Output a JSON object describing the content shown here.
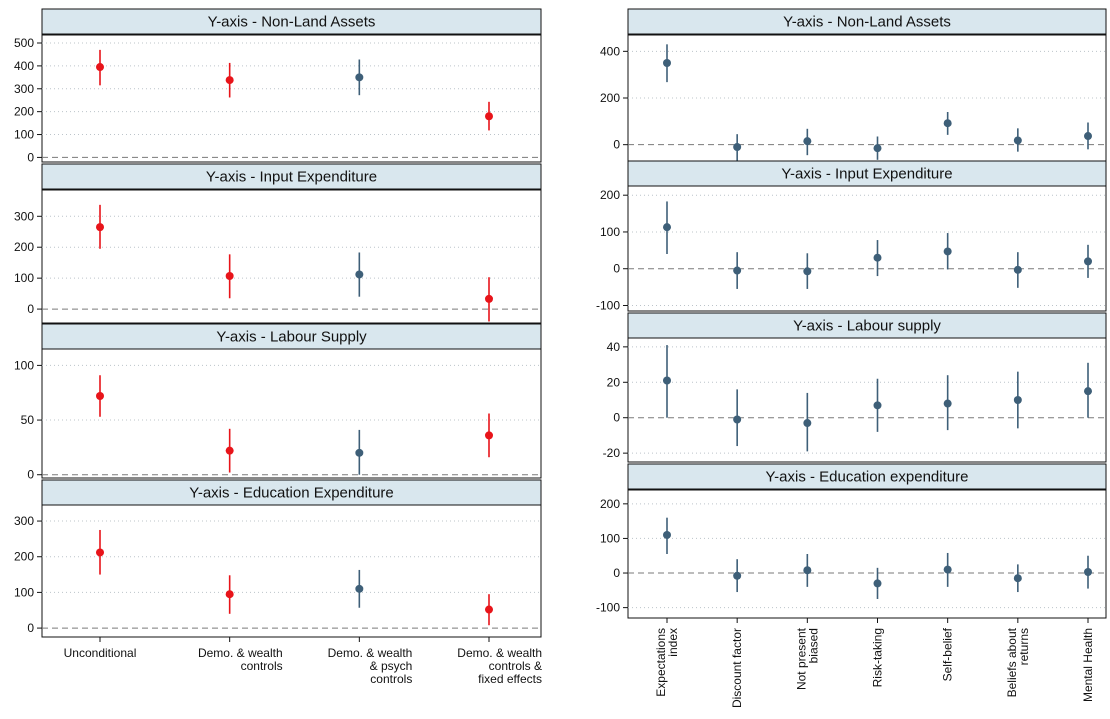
{
  "colors": {
    "significant": "#e8141a",
    "neutral": "#3e5f78",
    "strip_fill": "#d9e7ee",
    "grid": "#bcc4ca",
    "zero_line": "#7a7a7a"
  },
  "chart_data": [
    {
      "id": "left",
      "type": "scatter",
      "style": "point-with-error-bars",
      "categories": [
        "Unconditional",
        "Demo. & wealth controls",
        "Demo. & wealth & psych controls",
        "Demo. & wealth controls & fixed effects"
      ],
      "category_lines": [
        [
          "Unconditional"
        ],
        [
          "Demo. & wealth",
          "controls"
        ],
        [
          "Demo. & wealth",
          "& psych",
          "controls"
        ],
        [
          "Demo. & wealth",
          "controls &",
          "fixed effects"
        ]
      ],
      "tick_label_rotation": 0,
      "panels": [
        {
          "title": "Y-axis - Non-Land Assets",
          "ylim": [
            -20,
            535
          ],
          "yticks": [
            0,
            100,
            200,
            300,
            400,
            500
          ],
          "points": [
            {
              "estimate": 395,
              "ci_low": 315,
              "ci_high": 470,
              "highlight": true
            },
            {
              "estimate": 338,
              "ci_low": 262,
              "ci_high": 413,
              "highlight": true
            },
            {
              "estimate": 350,
              "ci_low": 272,
              "ci_high": 428,
              "highlight": false
            },
            {
              "estimate": 180,
              "ci_low": 118,
              "ci_high": 243,
              "highlight": true
            }
          ]
        },
        {
          "title": "Y-axis - Input Expenditure",
          "ylim": [
            -45,
            385
          ],
          "yticks": [
            0,
            100,
            200,
            300
          ],
          "points": [
            {
              "estimate": 265,
              "ci_low": 195,
              "ci_high": 337,
              "highlight": true
            },
            {
              "estimate": 107,
              "ci_low": 35,
              "ci_high": 177,
              "highlight": true
            },
            {
              "estimate": 112,
              "ci_low": 40,
              "ci_high": 183,
              "highlight": false
            },
            {
              "estimate": 33,
              "ci_low": -40,
              "ci_high": 103,
              "highlight": true
            }
          ]
        },
        {
          "title": "Y-axis - Labour Supply",
          "ylim": [
            -3,
            115
          ],
          "yticks": [
            0,
            50,
            100
          ],
          "points": [
            {
              "estimate": 72,
              "ci_low": 53,
              "ci_high": 91,
              "highlight": true
            },
            {
              "estimate": 22,
              "ci_low": 2,
              "ci_high": 42,
              "highlight": true
            },
            {
              "estimate": 20,
              "ci_low": 0,
              "ci_high": 41,
              "highlight": false
            },
            {
              "estimate": 36,
              "ci_low": 16,
              "ci_high": 56,
              "highlight": true
            }
          ]
        },
        {
          "title": "Y-axis - Education Expenditure",
          "ylim": [
            -25,
            345
          ],
          "yticks": [
            0,
            100,
            200,
            300
          ],
          "points": [
            {
              "estimate": 212,
              "ci_low": 150,
              "ci_high": 275,
              "highlight": true
            },
            {
              "estimate": 95,
              "ci_low": 40,
              "ci_high": 148,
              "highlight": true
            },
            {
              "estimate": 110,
              "ci_low": 57,
              "ci_high": 163,
              "highlight": false
            },
            {
              "estimate": 52,
              "ci_low": 8,
              "ci_high": 95,
              "highlight": true
            }
          ]
        }
      ]
    },
    {
      "id": "right",
      "type": "scatter",
      "style": "point-with-error-bars",
      "categories": [
        "Expectations index",
        "Discount factor",
        "Not present biased",
        "Risk-taking",
        "Self-belief",
        "Beliefs about returns",
        "Mental Health"
      ],
      "category_lines": [
        [
          "Expectations",
          "index"
        ],
        [
          "Discount factor"
        ],
        [
          "Not present",
          "biased"
        ],
        [
          "Risk-taking"
        ],
        [
          "Self-belief"
        ],
        [
          "Beliefs about",
          "returns"
        ],
        [
          "Mental Health"
        ]
      ],
      "tick_label_rotation": -90,
      "panels": [
        {
          "title": "Y-axis - Non-Land Assets",
          "ylim": [
            -70,
            470
          ],
          "yticks": [
            0,
            200,
            400
          ],
          "points": [
            {
              "estimate": 350,
              "ci_low": 268,
              "ci_high": 430,
              "highlight": false
            },
            {
              "estimate": -10,
              "ci_low": -70,
              "ci_high": 45,
              "highlight": false
            },
            {
              "estimate": 15,
              "ci_low": -45,
              "ci_high": 68,
              "highlight": false
            },
            {
              "estimate": -15,
              "ci_low": -65,
              "ci_high": 35,
              "highlight": false
            },
            {
              "estimate": 92,
              "ci_low": 42,
              "ci_high": 140,
              "highlight": false
            },
            {
              "estimate": 18,
              "ci_low": -30,
              "ci_high": 70,
              "highlight": false
            },
            {
              "estimate": 37,
              "ci_low": -20,
              "ci_high": 95,
              "highlight": false
            }
          ]
        },
        {
          "title": "Y-axis - Input Expenditure",
          "ylim": [
            -115,
            225
          ],
          "yticks": [
            -100,
            0,
            100,
            200
          ],
          "points": [
            {
              "estimate": 113,
              "ci_low": 40,
              "ci_high": 183,
              "highlight": false
            },
            {
              "estimate": -5,
              "ci_low": -55,
              "ci_high": 45,
              "highlight": false
            },
            {
              "estimate": -7,
              "ci_low": -55,
              "ci_high": 42,
              "highlight": false
            },
            {
              "estimate": 30,
              "ci_low": -20,
              "ci_high": 78,
              "highlight": false
            },
            {
              "estimate": 47,
              "ci_low": -2,
              "ci_high": 97,
              "highlight": false
            },
            {
              "estimate": -3,
              "ci_low": -52,
              "ci_high": 45,
              "highlight": false
            },
            {
              "estimate": 20,
              "ci_low": -25,
              "ci_high": 65,
              "highlight": false
            }
          ]
        },
        {
          "title": "Y-axis - Labour supply",
          "ylim": [
            -25,
            45
          ],
          "yticks": [
            -20,
            0,
            20,
            40
          ],
          "points": [
            {
              "estimate": 21,
              "ci_low": 0,
              "ci_high": 41,
              "highlight": false
            },
            {
              "estimate": -1,
              "ci_low": -16,
              "ci_high": 16,
              "highlight": false
            },
            {
              "estimate": -3,
              "ci_low": -19,
              "ci_high": 14,
              "highlight": false
            },
            {
              "estimate": 7,
              "ci_low": -8,
              "ci_high": 22,
              "highlight": false
            },
            {
              "estimate": 8,
              "ci_low": -7,
              "ci_high": 24,
              "highlight": false
            },
            {
              "estimate": 10,
              "ci_low": -6,
              "ci_high": 26,
              "highlight": false
            },
            {
              "estimate": 15,
              "ci_low": 0,
              "ci_high": 31,
              "highlight": false
            }
          ]
        },
        {
          "title": "Y-axis - Education expenditure",
          "ylim": [
            -130,
            240
          ],
          "yticks": [
            -100,
            0,
            100,
            200
          ],
          "points": [
            {
              "estimate": 110,
              "ci_low": 55,
              "ci_high": 160,
              "highlight": false
            },
            {
              "estimate": -8,
              "ci_low": -55,
              "ci_high": 40,
              "highlight": false
            },
            {
              "estimate": 8,
              "ci_low": -40,
              "ci_high": 55,
              "highlight": false
            },
            {
              "estimate": -30,
              "ci_low": -75,
              "ci_high": 15,
              "highlight": false
            },
            {
              "estimate": 10,
              "ci_low": -40,
              "ci_high": 58,
              "highlight": false
            },
            {
              "estimate": -15,
              "ci_low": -55,
              "ci_high": 25,
              "highlight": false
            },
            {
              "estimate": 3,
              "ci_low": -45,
              "ci_high": 50,
              "highlight": false
            }
          ]
        }
      ]
    }
  ]
}
